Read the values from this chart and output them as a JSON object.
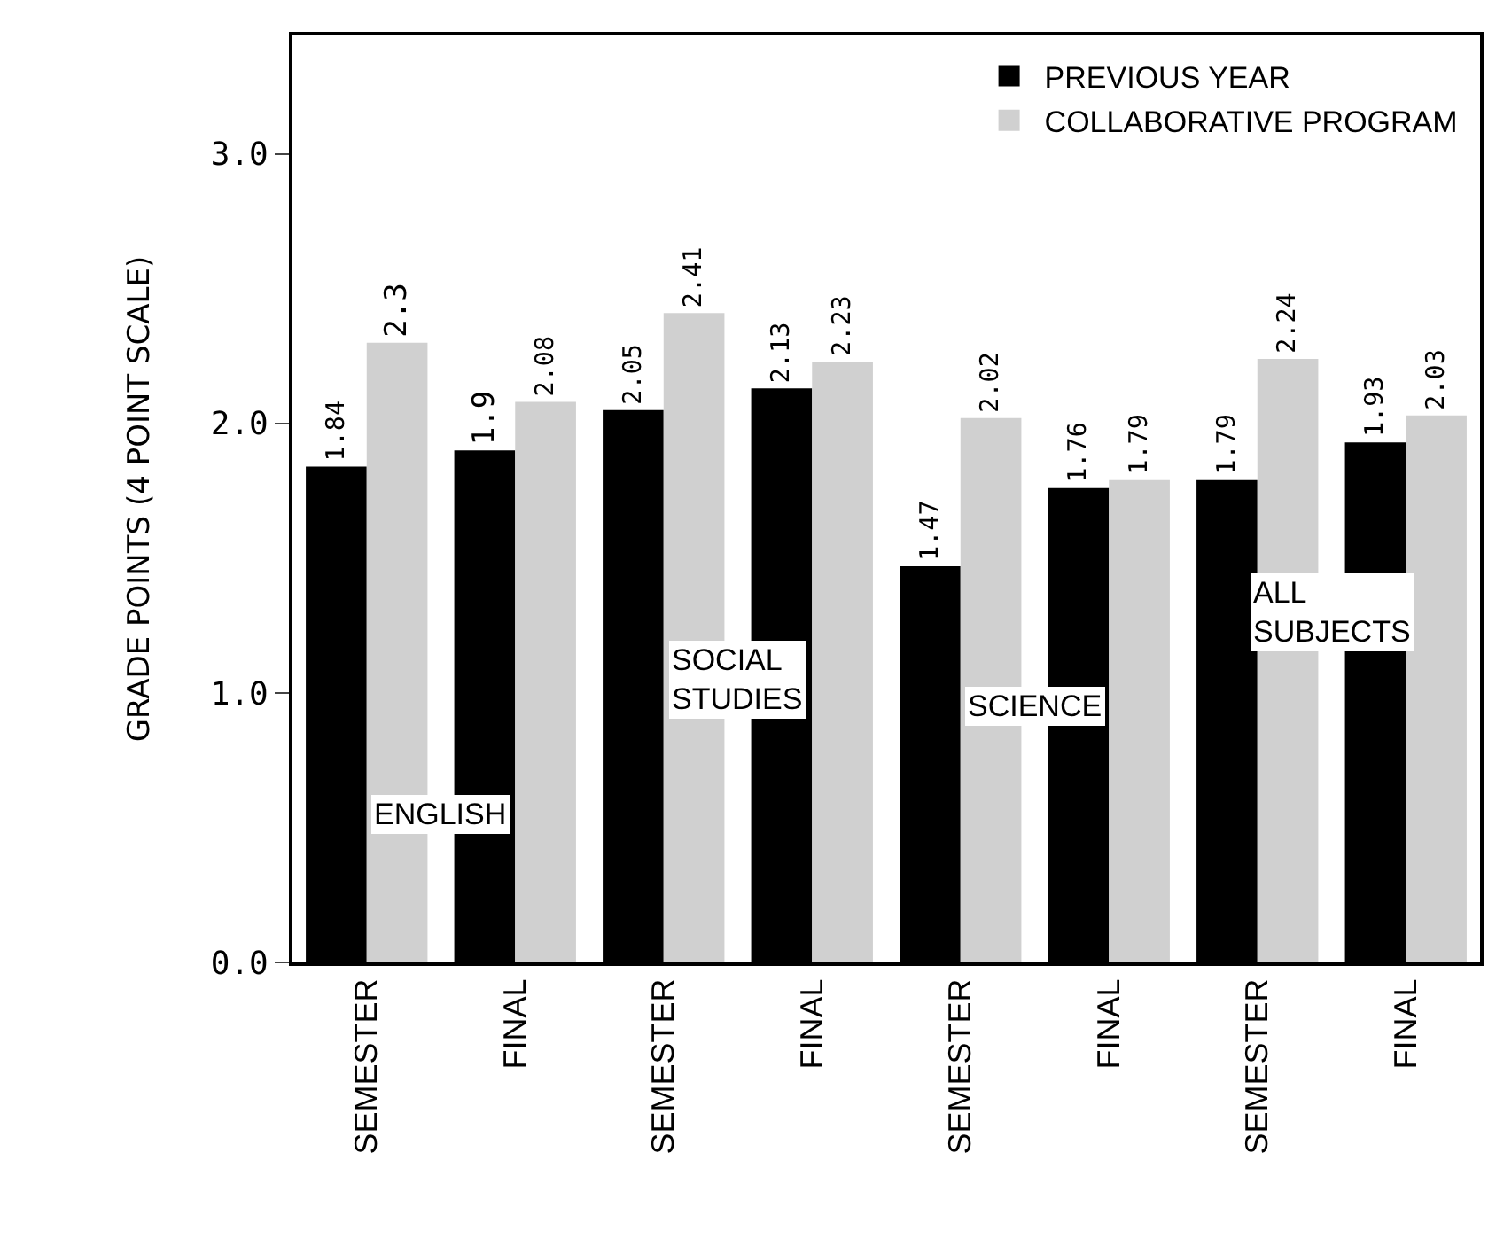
{
  "chart_data": {
    "type": "bar",
    "ylabel": "GRADE POINTS (4 POINT SCALE)",
    "categories": [
      "SEMESTER",
      "FINAL",
      "SEMESTER",
      "FINAL",
      "SEMESTER",
      "FINAL",
      "SEMESTER",
      "FINAL"
    ],
    "series": [
      {
        "name": "PREVIOUS YEAR",
        "color": "#000000",
        "values": [
          1.84,
          1.9,
          2.05,
          2.13,
          1.47,
          1.76,
          1.79,
          1.93
        ]
      },
      {
        "name": "COLLABORATIVE PROGRAM",
        "color": "#d0d0d0",
        "values": [
          2.3,
          2.08,
          2.41,
          2.23,
          2.02,
          1.79,
          2.24,
          2.03
        ]
      }
    ],
    "ylim": [
      0,
      3.44
    ],
    "yticks": [
      {
        "value": 0,
        "label": "0.0"
      },
      {
        "value": 1,
        "label": "1.0"
      },
      {
        "value": 2,
        "label": "2.0"
      },
      {
        "value": 3,
        "label": "3.0"
      }
    ],
    "data_labels": true,
    "grid": false,
    "legend": "top right",
    "annotations": [
      "ENGLISH",
      "SOCIAL\nSTUDIES",
      "SCIENCE",
      "ALL\nSUBJECTS"
    ]
  }
}
